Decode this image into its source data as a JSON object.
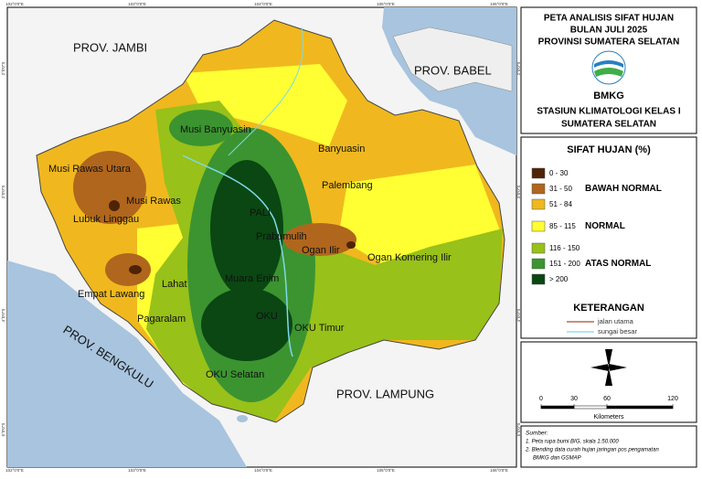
{
  "title": [
    "PETA ANALISIS SIFAT HUJAN",
    "BULAN JULI 2025",
    "PROVINSI SUMATERA SELATAN"
  ],
  "logo_text": "BMKG",
  "station": [
    "STASIUN KLIMATOLOGI  KELAS I",
    "SUMATERA SELATAN"
  ],
  "map": {
    "provinces": [
      "PROV. JAMBI",
      "PROV. BABEL",
      "PROV. BENGKULU",
      "PROV. LAMPUNG"
    ],
    "places": [
      "Musi Banyuasin",
      "Banyuasin",
      "Musi Rawas Utara",
      "Palembang",
      "Musi Rawas",
      "PALI",
      "Lubuk Linggau",
      "Prabumulih",
      "Ogan Ilir",
      "Ogan Komering Ilir",
      "Empat Lawang",
      "Lahat",
      "Muara Enim",
      "Pagaralam",
      "OKU",
      "OKU Timur",
      "OKU Selatan"
    ],
    "lon_labels": [
      "102°0'0\"E",
      "103°0'0\"E",
      "104°0'0\"E",
      "105°0'0\"E",
      "106°0'0\"E"
    ],
    "lat_labels": [
      "2°0'0\"S",
      "3°0'0\"S",
      "4°0'0\"S",
      "5°0'0\"S"
    ]
  },
  "legend": {
    "title": "SIFAT HUJAN (%)",
    "groups": [
      {
        "name": "BAWAH NORMAL",
        "items": [
          {
            "label": "0 - 30",
            "color": "#4e2307"
          },
          {
            "label": "31 - 50",
            "color": "#b0661c"
          },
          {
            "label": "51 - 84",
            "color": "#f0b81e"
          }
        ]
      },
      {
        "name": "NORMAL",
        "items": [
          {
            "label": "85 - 115",
            "color": "#ffff33"
          }
        ]
      },
      {
        "name": "ATAS NORMAL",
        "items": [
          {
            "label": "116 - 150",
            "color": "#98c11a"
          },
          {
            "label": "151 - 200",
            "color": "#3b9430"
          },
          {
            "label": "> 200",
            "color": "#0a4712"
          }
        ]
      }
    ]
  },
  "keterangan": {
    "title": "KETERANGAN",
    "items": [
      {
        "label": "jalan utama",
        "color": "#a0522d"
      },
      {
        "label": "sungai besar",
        "color": "#7fd8ea"
      }
    ]
  },
  "scale": {
    "ticks": [
      0,
      30,
      60,
      120
    ],
    "unit": "Kilometers"
  },
  "sources": {
    "title": "Sumber:",
    "lines": [
      "1. Peta rupa bumi BIG, skala 1:50.000",
      "2. Blending data curah hujan jaringan pos pengamatan",
      "BMKG dan GSMAP"
    ]
  }
}
